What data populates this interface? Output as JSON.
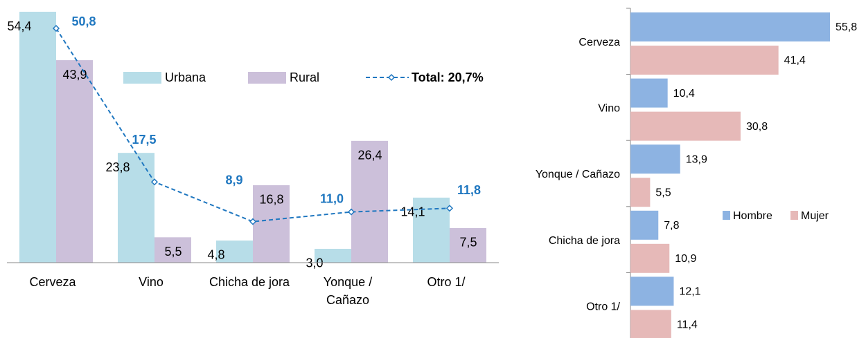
{
  "chart_data": [
    {
      "type": "bar",
      "categories": [
        "Cerveza",
        "Vino",
        "Chicha de jora",
        "Yonque / Cañazo",
        "Otro 1/"
      ],
      "series": [
        {
          "name": "Urbana",
          "color": "#b7dde8",
          "values": [
            54.4,
            23.8,
            4.8,
            3.0,
            14.1
          ],
          "value_labels": [
            "54,4",
            "23,8",
            "4,8",
            "3,0",
            "14,1"
          ]
        },
        {
          "name": "Rural",
          "color": "#ccc0da",
          "values": [
            43.9,
            5.5,
            16.8,
            26.4,
            7.5
          ],
          "value_labels": [
            "43,9",
            "5,5",
            "16,8",
            "26,4",
            "7,5"
          ]
        },
        {
          "name": "Total: 20,7%",
          "type": "line",
          "color": "#1f77c0",
          "values": [
            50.8,
            17.5,
            8.9,
            11.0,
            11.8
          ],
          "value_labels": [
            "50,8",
            "17,5",
            "8,9",
            "11,0",
            "11,8"
          ]
        }
      ]
    },
    {
      "type": "barh",
      "categories": [
        "Cerveza",
        "Vino",
        "Yonque / Cañazo",
        "Chicha de jora",
        "Otro 1/"
      ],
      "series": [
        {
          "name": "Hombre",
          "color": "#8db3e2",
          "values": [
            55.8,
            10.4,
            13.9,
            7.8,
            12.1
          ],
          "value_labels": [
            "55,8",
            "10,4",
            "13,9",
            "7,8",
            "12,1"
          ]
        },
        {
          "name": "Mujer",
          "color": "#e6b9b8",
          "values": [
            41.4,
            30.8,
            5.5,
            10.9,
            11.4
          ],
          "value_labels": [
            "41,4",
            "30,8",
            "5,5",
            "10,9",
            "11,4"
          ]
        }
      ]
    }
  ]
}
